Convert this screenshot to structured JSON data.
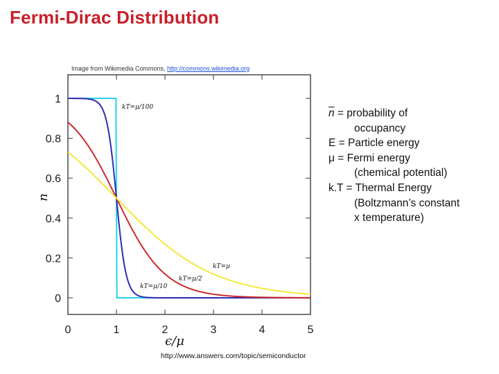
{
  "slide": {
    "title": "Fermi-Dirac Distribution",
    "credit_text": "Image from Wikimedia Commons, ",
    "credit_link": "http://commons.wikimedia.org",
    "source_url": "http://www.answers.com/topic/semiconductor"
  },
  "legend": {
    "line1_symbol": "n",
    "line1_text": " = probability of",
    "line2": "occupancy",
    "line3": "E = Particle energy",
    "line4": "μ = Fermi energy",
    "line5": "(chemical potential)",
    "line6": "k.T = Thermal Energy",
    "line7": "(Boltzmann’s constant",
    "line8": "x temperature)"
  },
  "chart_data": {
    "type": "line",
    "xlabel": "ϵ/μ",
    "ylabel": "n",
    "xlim": [
      0,
      5
    ],
    "ylim": [
      0,
      1.0
    ],
    "x_ticks": [
      "0",
      "1",
      "2",
      "3",
      "4",
      "5"
    ],
    "y_ticks": [
      "0",
      "0.2",
      "0.4",
      "0.6",
      "0.8",
      "1"
    ],
    "x": [
      0,
      0.25,
      0.5,
      0.75,
      0.9,
      1.0,
      1.1,
      1.25,
      1.5,
      2.0,
      2.5,
      3.0,
      4.0,
      5.0
    ],
    "series": [
      {
        "name": "kT=μ/100",
        "color": "#22d3ee",
        "values": [
          1,
          1,
          1,
          1,
          1,
          0.5,
          0,
          0,
          0,
          0,
          0,
          0,
          0,
          0
        ]
      },
      {
        "name": "kT=μ/10",
        "color": "#2d2db3",
        "values": [
          0.99995,
          0.9994,
          0.9933,
          0.924,
          0.731,
          0.5,
          0.269,
          0.076,
          0.0067,
          5e-05,
          0,
          0,
          0,
          0
        ]
      },
      {
        "name": "kT=μ/2",
        "color": "#cc2a2a",
        "values": [
          0.881,
          0.818,
          0.731,
          0.622,
          0.55,
          0.5,
          0.45,
          0.378,
          0.269,
          0.119,
          0.047,
          0.018,
          0.0025,
          0.0003
        ]
      },
      {
        "name": "kT=μ",
        "color": "#f5e83a",
        "values": [
          0.731,
          0.679,
          0.622,
          0.562,
          0.525,
          0.5,
          0.475,
          0.438,
          0.378,
          0.269,
          0.182,
          0.119,
          0.047,
          0.018
        ]
      }
    ],
    "curve_labels": [
      "kT=μ/100",
      "kT=μ/10",
      "kT=μ/2",
      "kT=μ"
    ],
    "grid": false
  }
}
